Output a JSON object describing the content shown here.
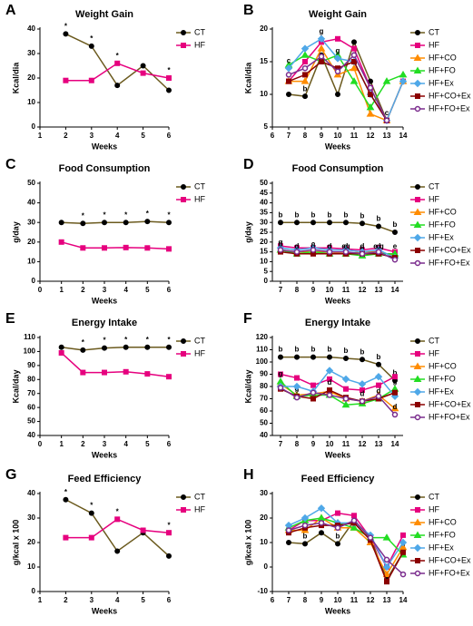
{
  "chart_data": [
    {
      "type": "line",
      "panel": "A",
      "title": "Weight Gain",
      "xlabel": "Weeks",
      "ylabel": "Kcal/dia",
      "x": [
        2,
        3,
        4,
        5,
        6
      ],
      "xlim": [
        1,
        6
      ],
      "xticks": [
        1,
        2,
        3,
        4,
        5,
        6
      ],
      "ylim": [
        0,
        40
      ],
      "yticks": [
        0,
        10,
        20,
        30,
        40
      ],
      "legend": "right",
      "series": [
        {
          "name": "CT",
          "color": "#6b5a1e",
          "marker": "circle",
          "marker_color": "#000000",
          "values": [
            38,
            33,
            17,
            25,
            15
          ],
          "annotations": [
            "*",
            "*",
            null,
            null,
            null
          ]
        },
        {
          "name": "HF",
          "color": "#e6007e",
          "marker": "square",
          "values": [
            19,
            19,
            26,
            22,
            20
          ],
          "annotations": [
            null,
            null,
            "*",
            null,
            "*"
          ]
        }
      ]
    },
    {
      "type": "line",
      "panel": "B",
      "title": "Weight Gain",
      "xlabel": "Weeks",
      "ylabel": "Kcal/dia",
      "x": [
        7,
        8,
        9,
        10,
        11,
        12,
        13,
        14
      ],
      "xlim": [
        6,
        14
      ],
      "xticks": [
        6,
        7,
        8,
        9,
        10,
        11,
        12,
        13,
        14
      ],
      "ylim": [
        5,
        20
      ],
      "yticks": [
        5,
        10,
        15,
        20
      ],
      "legend": "right",
      "series": [
        {
          "name": "CT",
          "color": "#6b5a1e",
          "marker": "circle",
          "marker_color": "#000000",
          "values": [
            10,
            9.7,
            16,
            10,
            18,
            12,
            6,
            null
          ],
          "annotations": [
            null,
            "b",
            null,
            null,
            null,
            null,
            null,
            null
          ]
        },
        {
          "name": "HF",
          "color": "#e6007e",
          "marker": "square",
          "values": [
            12,
            15,
            18,
            18.5,
            17,
            11,
            6,
            12
          ]
        },
        {
          "name": "HF+CO",
          "color": "#ff8c00",
          "marker": "triangle",
          "values": [
            12,
            12,
            17,
            13,
            14,
            7,
            6,
            12
          ]
        },
        {
          "name": "HF+FO",
          "color": "#22dd22",
          "marker": "triangle",
          "values": [
            14.5,
            16,
            15,
            16,
            12,
            8,
            12,
            13
          ]
        },
        {
          "name": "HF+Ex",
          "color": "#4fa8e8",
          "marker": "diamond",
          "values": [
            14,
            17,
            18.5,
            15.5,
            15,
            10,
            6,
            12
          ],
          "annotations": [
            "c",
            null,
            "g",
            "g",
            "g",
            "g",
            "c",
            null
          ]
        },
        {
          "name": "HF+CO+Ex",
          "color": "#8b0000",
          "marker": "square",
          "values": [
            12,
            13,
            15,
            14,
            15,
            10,
            6,
            null
          ]
        },
        {
          "name": "HF+FO+Ex",
          "color": "#7b2d8e",
          "marker": "open-circle",
          "values": [
            13,
            14,
            15.8,
            13.5,
            16,
            11,
            6,
            null
          ]
        }
      ]
    },
    {
      "type": "line",
      "panel": "C",
      "title": "Food Consumption",
      "xlabel": "Weeks",
      "ylabel": "g/day",
      "x": [
        1,
        2,
        3,
        4,
        5,
        6
      ],
      "xlim": [
        0,
        6
      ],
      "xticks": [
        0,
        1,
        2,
        3,
        4,
        5,
        6
      ],
      "ylim": [
        0,
        50
      ],
      "yticks": [
        0,
        10,
        20,
        30,
        40,
        50
      ],
      "legend": "right",
      "series": [
        {
          "name": "CT",
          "color": "#6b5a1e",
          "marker": "circle",
          "marker_color": "#000000",
          "values": [
            30,
            29.5,
            30,
            30,
            30.5,
            30
          ],
          "annotations": [
            null,
            "*",
            "*",
            "*",
            "*",
            "*"
          ]
        },
        {
          "name": "HF",
          "color": "#e6007e",
          "marker": "square",
          "values": [
            20,
            17,
            17,
            17.2,
            17,
            16.5
          ]
        }
      ]
    },
    {
      "type": "line",
      "panel": "D",
      "title": "Food Consumption",
      "xlabel": "Weeks",
      "ylabel": "g/day",
      "x": [
        7,
        8,
        9,
        10,
        11,
        12,
        13,
        14
      ],
      "xlim": [
        6.5,
        14.5
      ],
      "xticks": [
        7,
        8,
        9,
        10,
        11,
        12,
        13,
        14
      ],
      "ylim": [
        0,
        50
      ],
      "yticks": [
        0,
        5,
        10,
        15,
        20,
        25,
        30,
        35,
        40,
        45,
        50
      ],
      "legend": "right",
      "series": [
        {
          "name": "CT",
          "color": "#6b5a1e",
          "marker": "circle",
          "marker_color": "#000000",
          "values": [
            30,
            30,
            30,
            30,
            30,
            29.5,
            28,
            25
          ],
          "annotations": [
            "b",
            "b",
            "b",
            "b",
            "b",
            "b",
            "b",
            "b"
          ]
        },
        {
          "name": "HF",
          "color": "#e6007e",
          "marker": "square",
          "values": [
            18,
            17,
            17,
            17,
            16.5,
            16,
            17,
            15
          ]
        },
        {
          "name": "HF+CO",
          "color": "#ff8c00",
          "marker": "triangle",
          "values": [
            16,
            15,
            15,
            15,
            14,
            15,
            15,
            13
          ]
        },
        {
          "name": "HF+FO",
          "color": "#22dd22",
          "marker": "triangle",
          "values": [
            16,
            14,
            15,
            14,
            14,
            13,
            14,
            14
          ],
          "annotations": [
            "g",
            "g",
            "c",
            "g",
            "eg",
            "g",
            "e,g",
            "e"
          ]
        },
        {
          "name": "HF+Ex",
          "color": "#4fa8e8",
          "marker": "diamond",
          "values": [
            17,
            16,
            17,
            16,
            16,
            15,
            16,
            12
          ]
        },
        {
          "name": "HF+CO+Ex",
          "color": "#8b0000",
          "marker": "square",
          "values": [
            15,
            14,
            14,
            14,
            14,
            14,
            14,
            12
          ],
          "annotations": [
            "d",
            "d",
            "d",
            "d",
            "d",
            "d",
            "d",
            null
          ]
        },
        {
          "name": "HF+FO+Ex",
          "color": "#7b2d8e",
          "marker": "open-circle",
          "values": [
            16,
            15,
            16,
            15,
            15,
            14,
            15,
            11
          ]
        }
      ]
    },
    {
      "type": "line",
      "panel": "E",
      "title": "Energy Intake",
      "xlabel": "Weeks",
      "ylabel": "Kcal/day",
      "x": [
        1,
        2,
        3,
        4,
        5,
        6
      ],
      "xlim": [
        0,
        6
      ],
      "xticks": [
        0,
        1,
        2,
        3,
        4,
        5,
        6
      ],
      "ylim": [
        40,
        110
      ],
      "yticks": [
        40,
        50,
        60,
        70,
        80,
        90,
        100,
        110
      ],
      "legend": "right",
      "series": [
        {
          "name": "CT",
          "color": "#6b5a1e",
          "marker": "circle",
          "marker_color": "#000000",
          "values": [
            103,
            101,
            102.5,
            103,
            103,
            103
          ],
          "annotations": [
            null,
            "*",
            "*",
            "*",
            "*",
            "*"
          ]
        },
        {
          "name": "HF",
          "color": "#e6007e",
          "marker": "square",
          "values": [
            99,
            85,
            85,
            85.5,
            84,
            82
          ]
        }
      ]
    },
    {
      "type": "line",
      "panel": "F",
      "title": "Energy Intake",
      "xlabel": "Weeks",
      "ylabel": "Kcal/day",
      "x": [
        7,
        8,
        9,
        10,
        11,
        12,
        13,
        14
      ],
      "xlim": [
        6.5,
        14.5
      ],
      "xticks": [
        7,
        8,
        9,
        10,
        11,
        12,
        13,
        14
      ],
      "ylim": [
        40,
        120
      ],
      "yticks": [
        40,
        50,
        60,
        70,
        80,
        90,
        100,
        110,
        120
      ],
      "legend": "right",
      "series": [
        {
          "name": "CT",
          "color": "#6b5a1e",
          "marker": "circle",
          "marker_color": "#000000",
          "values": [
            104,
            104,
            104,
            104,
            103,
            102,
            98,
            85
          ],
          "annotations": [
            "b",
            "b",
            "b",
            "b",
            "b",
            "b",
            "b",
            "b"
          ]
        },
        {
          "name": "HF",
          "color": "#e6007e",
          "marker": "square",
          "values": [
            90,
            87,
            81,
            86,
            78,
            77,
            81,
            88
          ]
        },
        {
          "name": "HF+CO",
          "color": "#ff8c00",
          "marker": "triangle",
          "values": [
            82,
            73,
            74,
            76,
            70,
            68,
            73,
            62
          ]
        },
        {
          "name": "HF+FO",
          "color": "#22dd22",
          "marker": "triangle",
          "values": [
            84,
            72,
            73,
            73,
            65,
            66,
            70,
            78
          ],
          "annotations": [
            "g",
            "g",
            null,
            null,
            null,
            null,
            null,
            "g"
          ]
        },
        {
          "name": "HF+Ex",
          "color": "#4fa8e8",
          "marker": "diamond",
          "values": [
            80,
            80,
            76,
            93,
            86,
            82,
            88,
            72
          ]
        },
        {
          "name": "HF+CO+Ex",
          "color": "#8b0000",
          "marker": "square",
          "values": [
            78,
            72,
            70,
            77,
            71,
            68,
            70,
            75
          ],
          "annotations": [
            null,
            null,
            null,
            "d",
            null,
            "d",
            "d",
            null
          ]
        },
        {
          "name": "HF+FO+Ex",
          "color": "#7b2d8e",
          "marker": "open-circle",
          "values": [
            79,
            71,
            75,
            73,
            70,
            68,
            72,
            57
          ],
          "annotations": [
            null,
            null,
            null,
            null,
            null,
            null,
            null,
            "d"
          ]
        }
      ]
    },
    {
      "type": "line",
      "panel": "G",
      "title": "Feed Efficiency",
      "xlabel": "Weeks",
      "ylabel": "g/kcal x 100",
      "x": [
        2,
        3,
        4,
        5,
        6
      ],
      "xlim": [
        1,
        6
      ],
      "xticks": [
        1,
        2,
        3,
        4,
        5,
        6
      ],
      "ylim": [
        0,
        40
      ],
      "yticks": [
        0,
        10,
        20,
        30,
        40
      ],
      "legend": "right",
      "series": [
        {
          "name": "CT",
          "color": "#6b5a1e",
          "marker": "circle",
          "marker_color": "#000000",
          "values": [
            37.5,
            32,
            16.5,
            24,
            14.5
          ],
          "annotations": [
            "*",
            "*",
            null,
            null,
            null
          ]
        },
        {
          "name": "HF",
          "color": "#e6007e",
          "marker": "square",
          "values": [
            22,
            22,
            29.5,
            25,
            24
          ],
          "annotations": [
            null,
            null,
            "*",
            null,
            "*"
          ]
        }
      ]
    },
    {
      "type": "line",
      "panel": "H",
      "title": "Feed Efficiency",
      "xlabel": "Weeks",
      "ylabel": "g/kcal x 100",
      "x": [
        7,
        8,
        9,
        10,
        11,
        12,
        13,
        14
      ],
      "xlim": [
        6,
        14
      ],
      "xticks": [
        6,
        7,
        8,
        9,
        10,
        11,
        12,
        13,
        14
      ],
      "ylim": [
        -10,
        30
      ],
      "yticks": [
        -10,
        0,
        10,
        20,
        30
      ],
      "legend": "right",
      "series": [
        {
          "name": "CT",
          "color": "#6b5a1e",
          "marker": "circle",
          "marker_color": "#000000",
          "values": [
            10,
            9.5,
            14,
            9.5,
            19,
            12,
            -5,
            6
          ],
          "annotations": [
            null,
            "b",
            null,
            "b",
            null,
            null,
            null,
            "b"
          ]
        },
        {
          "name": "HF",
          "color": "#e6007e",
          "marker": "square",
          "values": [
            15,
            19,
            19,
            22,
            21,
            12,
            0,
            13
          ]
        },
        {
          "name": "HF+CO",
          "color": "#ff8c00",
          "marker": "triangle",
          "values": [
            15,
            15,
            20,
            16,
            16,
            10,
            -3,
            8
          ]
        },
        {
          "name": "HF+FO",
          "color": "#22dd22",
          "marker": "triangle",
          "values": [
            16,
            19,
            20,
            18,
            16,
            12,
            12,
            5
          ]
        },
        {
          "name": "HF+Ex",
          "color": "#4fa8e8",
          "marker": "diamond",
          "values": [
            17,
            20,
            24,
            18,
            18,
            13,
            0,
            10
          ]
        },
        {
          "name": "HF+CO+Ex",
          "color": "#8b0000",
          "marker": "square",
          "values": [
            14,
            16,
            17,
            17,
            18,
            11,
            -6,
            6
          ]
        },
        {
          "name": "HF+FO+Ex",
          "color": "#7b2d8e",
          "marker": "open-circle",
          "values": [
            15,
            17,
            18,
            16,
            19,
            12,
            3,
            -3
          ]
        }
      ]
    }
  ]
}
